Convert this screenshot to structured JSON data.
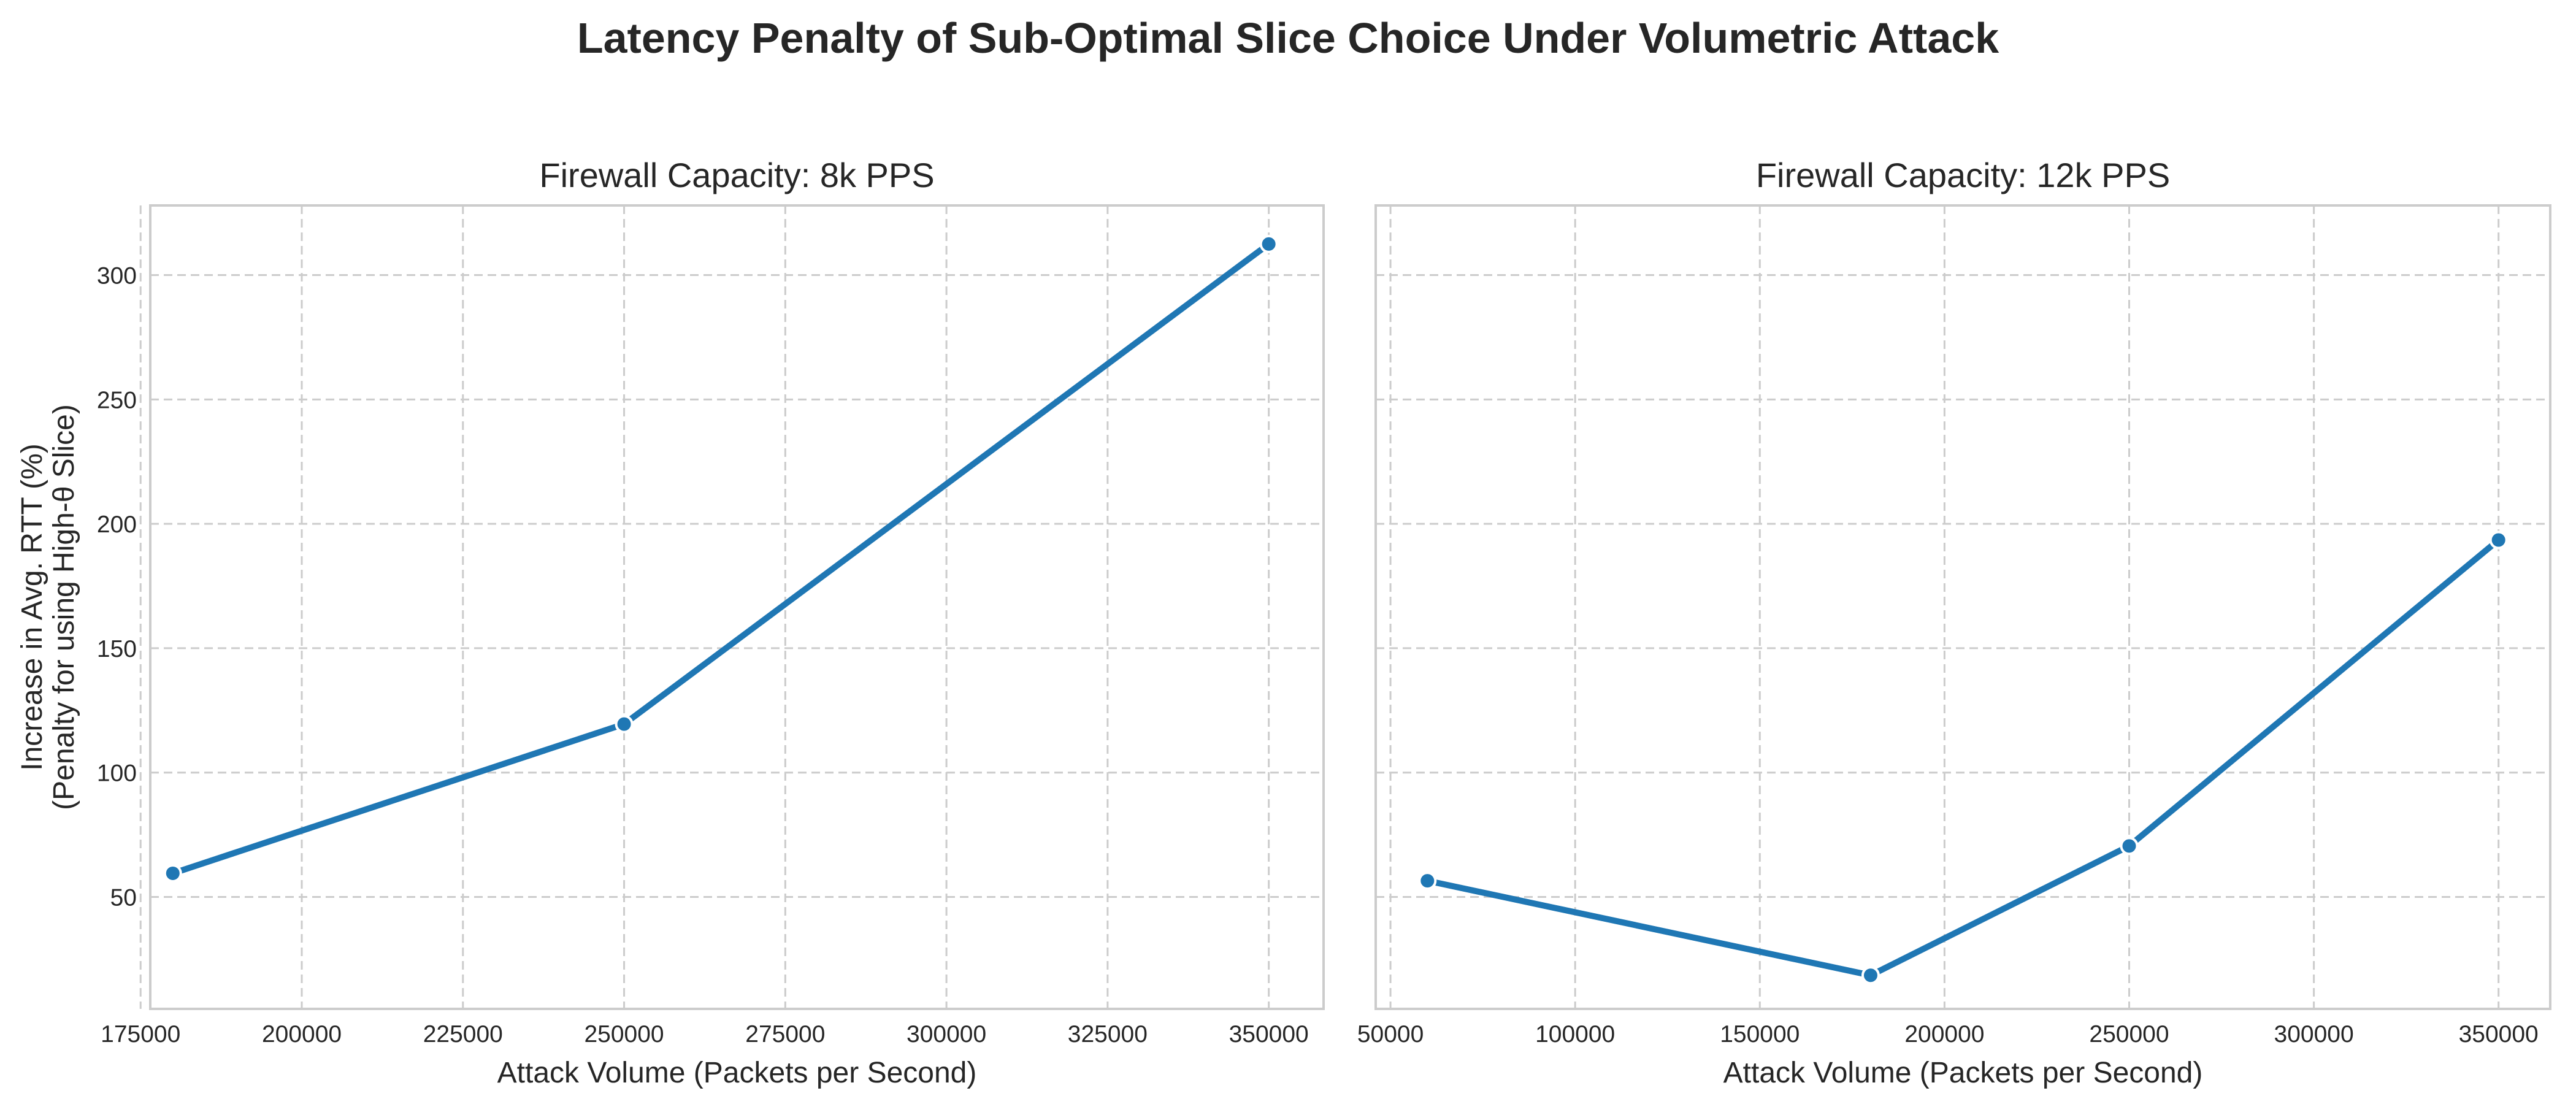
{
  "figure": {
    "title": "Latency Penalty of Sub-Optimal Slice Choice Under Volumetric Attack"
  },
  "colors": {
    "line": "#1f77b4",
    "grid": "#cccccc",
    "spine": "#cccccc",
    "text": "#262626",
    "marker_edge": "#ffffff"
  },
  "chart_data": [
    {
      "type": "line",
      "title": "Firewall Capacity: 8k PPS",
      "xlabel": "Attack Volume (Packets per Second)",
      "ylabel": [
        "Increase in Avg. RTT (%)",
        "(Penalty for using High-θ Slice)"
      ],
      "x": [
        180000,
        250000,
        350000
      ],
      "y": [
        59.5,
        119.5,
        312.5
      ],
      "xlim": [
        176500,
        358500
      ],
      "ylim": [
        5,
        328
      ],
      "xticks": [
        175000,
        200000,
        225000,
        250000,
        275000,
        300000,
        325000,
        350000
      ],
      "yticks": [
        50,
        100,
        150,
        200,
        250,
        300
      ],
      "grid": true,
      "markers": true
    },
    {
      "type": "line",
      "title": "Firewall Capacity: 12k PPS",
      "xlabel": "Attack Volume (Packets per Second)",
      "ylabel": [
        "",
        ""
      ],
      "x": [
        60000,
        180000,
        250000,
        350000
      ],
      "y": [
        56.5,
        18.5,
        70.5,
        193.5
      ],
      "xlim": [
        46000,
        364000
      ],
      "ylim": [
        5,
        328
      ],
      "xticks": [
        50000,
        100000,
        150000,
        200000,
        250000,
        300000,
        350000
      ],
      "yticks": [
        50,
        100,
        150,
        200,
        250,
        300
      ],
      "grid": true,
      "markers": true
    }
  ]
}
